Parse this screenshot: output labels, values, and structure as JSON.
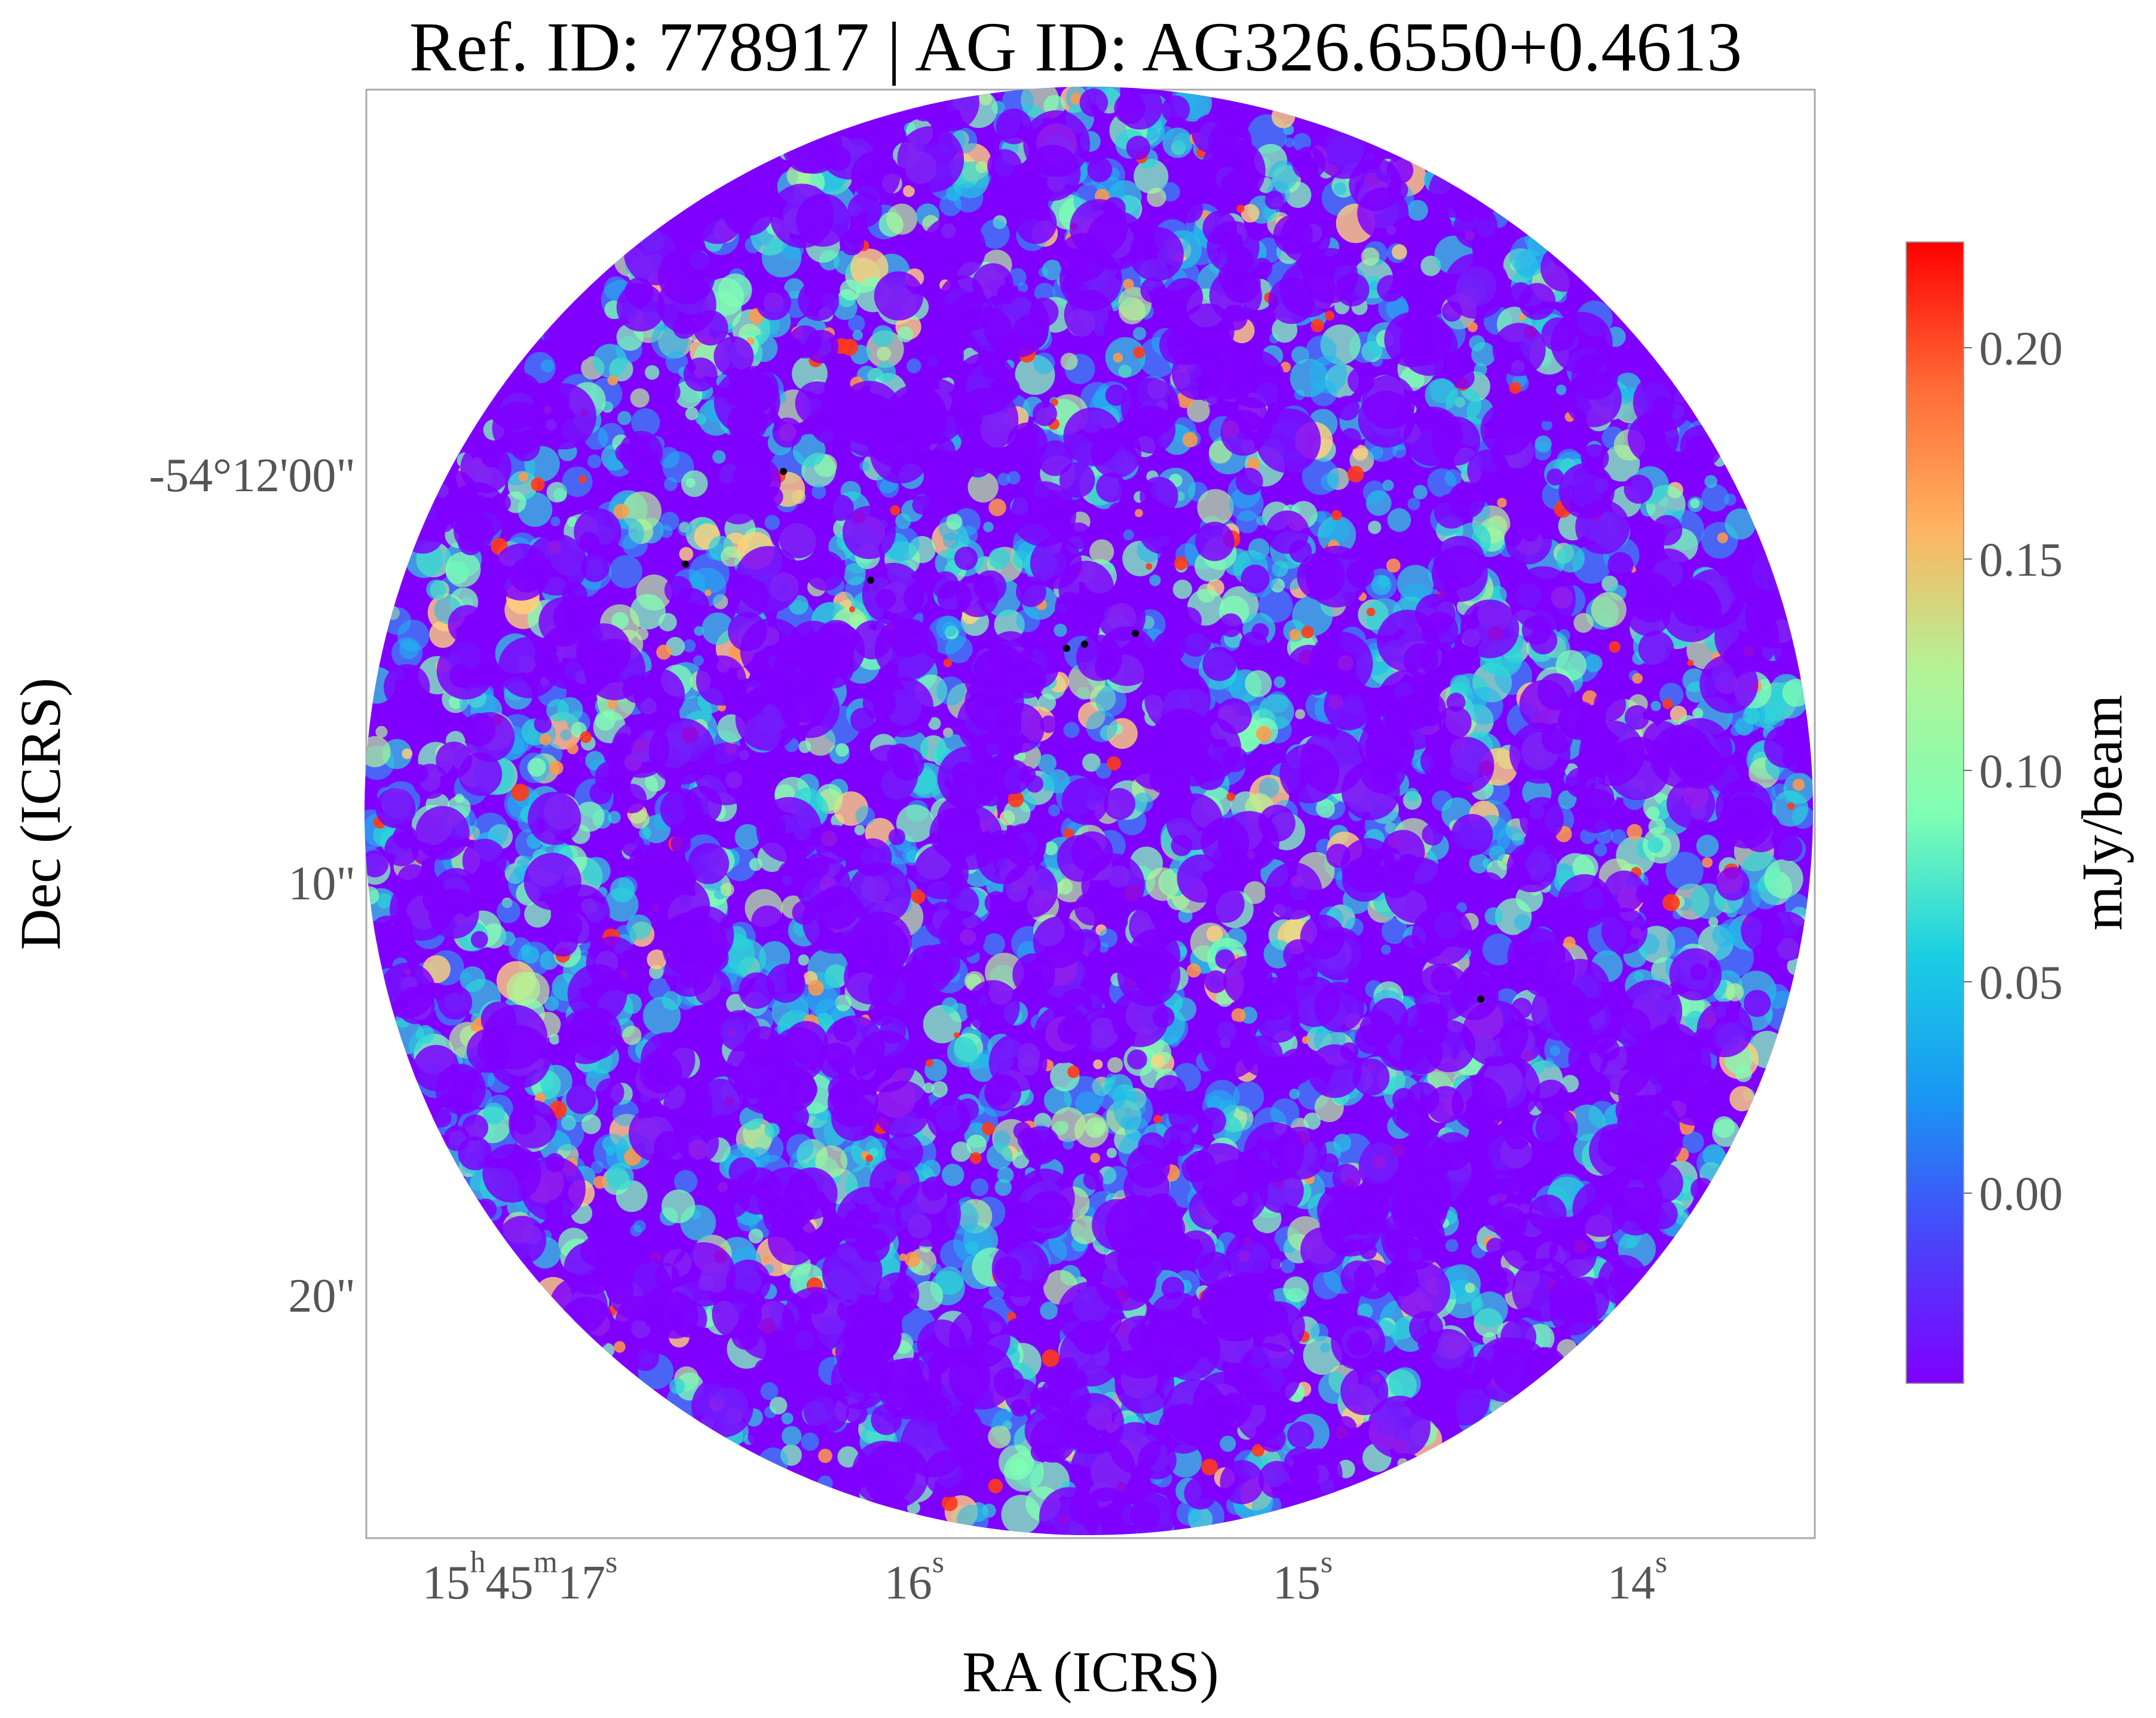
{
  "figure": {
    "title": "Ref. ID: 778917 | AG ID: AG326.6550+0.4613",
    "xlabel": "RA (ICRS)",
    "ylabel": "Dec (ICRS)"
  },
  "image": {
    "colormap": "rainbow",
    "shape": "circular",
    "colors": {
      "low": "#7f00ff",
      "mid": "#80ffb4",
      "high": "#ff0000",
      "peak_dots": "#000000",
      "frame": "#aaaaaa"
    }
  },
  "axes": {
    "x_ticks": [
      {
        "parts": [
          "15",
          "h",
          "45",
          "m",
          "17",
          "s"
        ]
      },
      {
        "parts": [
          "16",
          "s"
        ]
      },
      {
        "parts": [
          "15",
          "s"
        ]
      },
      {
        "parts": [
          "14",
          "s"
        ]
      }
    ],
    "y_ticks": [
      {
        "label": "-54°12'00\""
      },
      {
        "label": "10\""
      },
      {
        "label": "20\""
      }
    ]
  },
  "colorbar": {
    "label": "mJy/beam",
    "min": -0.045,
    "max": 0.225,
    "ticks": [
      {
        "value": 0.2,
        "label": "0.20"
      },
      {
        "value": 0.15,
        "label": "0.15"
      },
      {
        "value": 0.1,
        "label": "0.10"
      },
      {
        "value": 0.05,
        "label": "0.05"
      },
      {
        "value": 0.0,
        "label": "0.00"
      }
    ]
  }
}
